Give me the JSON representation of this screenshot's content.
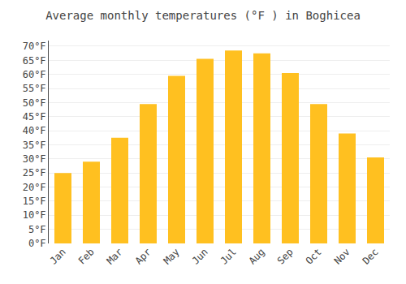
{
  "chart_data": {
    "type": "bar",
    "title": "Average monthly temperatures (°F ) in Boghicea",
    "categories": [
      "Jan",
      "Feb",
      "Mar",
      "Apr",
      "May",
      "Jun",
      "Jul",
      "Aug",
      "Sep",
      "Oct",
      "Nov",
      "Dec"
    ],
    "values": [
      25,
      29,
      37.5,
      49.5,
      59.5,
      65.5,
      68.5,
      67.5,
      60.5,
      49.5,
      39,
      30.5
    ],
    "color": "#FFC020",
    "ylim": [
      0,
      72
    ],
    "yticks": [
      {
        "value": 0,
        "label": "0°F"
      },
      {
        "value": 5,
        "label": "5°F"
      },
      {
        "value": 10,
        "label": "10°F"
      },
      {
        "value": 15,
        "label": "15°F"
      },
      {
        "value": 20,
        "label": "20°F"
      },
      {
        "value": 25,
        "label": "25°F"
      },
      {
        "value": 30,
        "label": "30°F"
      },
      {
        "value": 35,
        "label": "35°F"
      },
      {
        "value": 40,
        "label": "40°F"
      },
      {
        "value": 45,
        "label": "45°F"
      },
      {
        "value": 50,
        "label": "50°F"
      },
      {
        "value": 55,
        "label": "55°F"
      },
      {
        "value": 60,
        "label": "60°F"
      },
      {
        "value": 65,
        "label": "65°F"
      },
      {
        "value": 70,
        "label": "70°F"
      }
    ],
    "grid": true
  }
}
